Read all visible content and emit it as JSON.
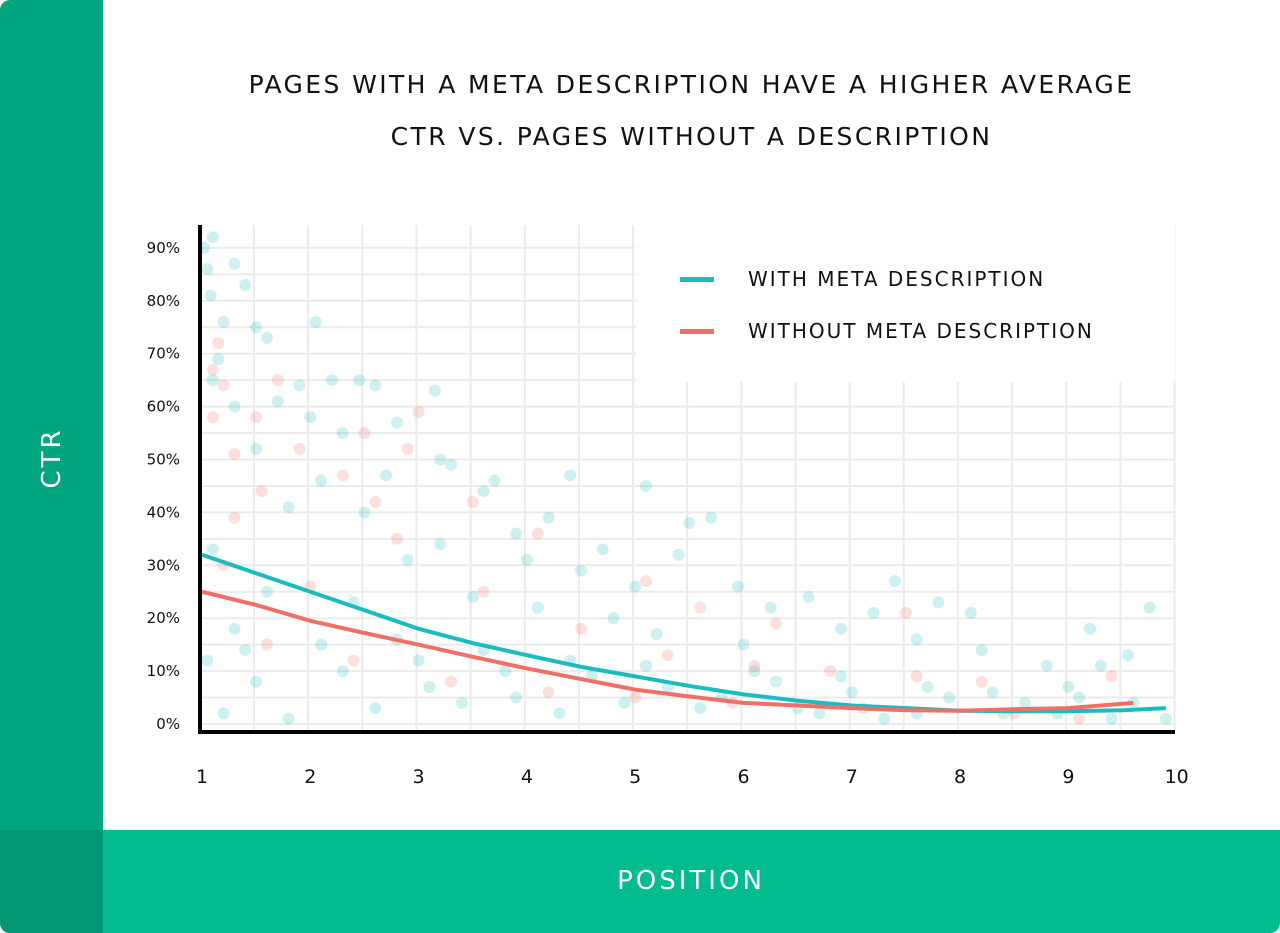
{
  "chart_data": {
    "type": "scatter",
    "title_lines": [
      "PAGES WITH A META DESCRIPTION HAVE A HIGHER AVERAGE",
      "CTR VS. PAGES WITHOUT A DESCRIPTION"
    ],
    "xlabel": "POSITION",
    "ylabel": "CTR",
    "xlim": [
      1,
      10
    ],
    "ylim": [
      0,
      90
    ],
    "x_ticks": [
      "1",
      "2",
      "3",
      "4",
      "5",
      "6",
      "7",
      "8",
      "9",
      "10"
    ],
    "y_ticks": [
      "0%",
      "10%",
      "20%",
      "30%",
      "40%",
      "50%",
      "60%",
      "70%",
      "80%",
      "90%"
    ],
    "grid": true,
    "legend_position": "top-right",
    "series": [
      {
        "name": "WITH META DESCRIPTION",
        "color": "#1bbcc0",
        "trend": [
          [
            1,
            32
          ],
          [
            1.5,
            28.5
          ],
          [
            2,
            25
          ],
          [
            2.5,
            21.5
          ],
          [
            3,
            18
          ],
          [
            3.5,
            15.3
          ],
          [
            4,
            13
          ],
          [
            4.5,
            10.8
          ],
          [
            5,
            9
          ],
          [
            5.5,
            7.2
          ],
          [
            6,
            5.6
          ],
          [
            6.5,
            4.4
          ],
          [
            7,
            3.5
          ],
          [
            7.5,
            3
          ],
          [
            8,
            2.5
          ],
          [
            8.5,
            2.4
          ],
          [
            9,
            2.4
          ],
          [
            9.5,
            2.6
          ],
          [
            9.9,
            3
          ]
        ],
        "points": [
          [
            1.02,
            90
          ],
          [
            1.1,
            92
          ],
          [
            1.05,
            86
          ],
          [
            1.3,
            87
          ],
          [
            1.4,
            83
          ],
          [
            1.08,
            81
          ],
          [
            1.2,
            76
          ],
          [
            1.5,
            75
          ],
          [
            1.6,
            73
          ],
          [
            2.05,
            76
          ],
          [
            1.15,
            69
          ],
          [
            1.1,
            65
          ],
          [
            1.9,
            64
          ],
          [
            2.2,
            65
          ],
          [
            2.45,
            65
          ],
          [
            2.6,
            64
          ],
          [
            3.15,
            63
          ],
          [
            1.7,
            61
          ],
          [
            1.3,
            60
          ],
          [
            2.0,
            58
          ],
          [
            2.8,
            57
          ],
          [
            2.3,
            55
          ],
          [
            1.5,
            52
          ],
          [
            3.2,
            50
          ],
          [
            3.3,
            49
          ],
          [
            2.1,
            46
          ],
          [
            2.7,
            47
          ],
          [
            3.7,
            46
          ],
          [
            4.4,
            47
          ],
          [
            4.2,
            39
          ],
          [
            3.6,
            44
          ],
          [
            2.5,
            40
          ],
          [
            1.8,
            41
          ],
          [
            5.1,
            45
          ],
          [
            5.7,
            39
          ],
          [
            5.5,
            38
          ],
          [
            4.7,
            33
          ],
          [
            3.9,
            36
          ],
          [
            3.2,
            34
          ],
          [
            1.1,
            33
          ],
          [
            2.9,
            31
          ],
          [
            4.0,
            31
          ],
          [
            4.5,
            29
          ],
          [
            5.0,
            26
          ],
          [
            5.4,
            32
          ],
          [
            5.95,
            26
          ],
          [
            6.6,
            24
          ],
          [
            6.25,
            22
          ],
          [
            7.4,
            27
          ],
          [
            7.2,
            21
          ],
          [
            7.8,
            23
          ],
          [
            8.1,
            21
          ],
          [
            9.75,
            22
          ],
          [
            9.2,
            18
          ],
          [
            6.9,
            18
          ],
          [
            7.6,
            16
          ],
          [
            8.2,
            14
          ],
          [
            8.8,
            11
          ],
          [
            9.3,
            11
          ],
          [
            9.55,
            13
          ],
          [
            6.0,
            15
          ],
          [
            5.2,
            17
          ],
          [
            4.8,
            20
          ],
          [
            4.1,
            22
          ],
          [
            3.5,
            24
          ],
          [
            2.4,
            23
          ],
          [
            1.6,
            25
          ],
          [
            1.3,
            18
          ],
          [
            2.1,
            15
          ],
          [
            3.0,
            12
          ],
          [
            3.8,
            10
          ],
          [
            4.6,
            9
          ],
          [
            5.3,
            7
          ],
          [
            6.3,
            8
          ],
          [
            7.0,
            6
          ],
          [
            7.9,
            5
          ],
          [
            8.6,
            4
          ],
          [
            9.1,
            5
          ],
          [
            9.9,
            1
          ],
          [
            1.2,
            2
          ],
          [
            1.8,
            1
          ],
          [
            2.6,
            3
          ],
          [
            3.4,
            4
          ],
          [
            4.3,
            2
          ],
          [
            5.6,
            3
          ],
          [
            6.7,
            2
          ],
          [
            7.3,
            1
          ],
          [
            8.4,
            2
          ],
          [
            9.4,
            1
          ],
          [
            1.5,
            8
          ],
          [
            2.3,
            10
          ],
          [
            3.1,
            7
          ],
          [
            3.9,
            5
          ],
          [
            4.9,
            4
          ],
          [
            5.8,
            5
          ],
          [
            6.5,
            3
          ],
          [
            7.6,
            2
          ],
          [
            8.9,
            2
          ],
          [
            1.05,
            12
          ],
          [
            1.4,
            14
          ],
          [
            2.8,
            16
          ],
          [
            3.6,
            14
          ],
          [
            4.4,
            12
          ],
          [
            5.1,
            11
          ],
          [
            6.1,
            10
          ],
          [
            6.9,
            9
          ],
          [
            7.7,
            7
          ],
          [
            8.3,
            6
          ],
          [
            9.0,
            7
          ],
          [
            9.6,
            4
          ]
        ]
      },
      {
        "name": "WITHOUT META DESCRIPTION",
        "color": "#f07068",
        "trend": [
          [
            1,
            25
          ],
          [
            1.5,
            22.5
          ],
          [
            2,
            19.5
          ],
          [
            2.5,
            17.2
          ],
          [
            3,
            15
          ],
          [
            3.5,
            12.7
          ],
          [
            4,
            10.5
          ],
          [
            4.5,
            8.5
          ],
          [
            5,
            6.5
          ],
          [
            5.5,
            5.2
          ],
          [
            6,
            4
          ],
          [
            6.5,
            3.5
          ],
          [
            7,
            3
          ],
          [
            7.5,
            2.6
          ],
          [
            8,
            2.5
          ],
          [
            8.5,
            2.8
          ],
          [
            9,
            3
          ],
          [
            9.3,
            3.5
          ],
          [
            9.6,
            4
          ]
        ],
        "points": [
          [
            1.15,
            72
          ],
          [
            1.1,
            67
          ],
          [
            1.2,
            64
          ],
          [
            1.1,
            58
          ],
          [
            1.5,
            58
          ],
          [
            1.7,
            65
          ],
          [
            3.0,
            59
          ],
          [
            2.5,
            55
          ],
          [
            1.9,
            52
          ],
          [
            1.3,
            51
          ],
          [
            2.9,
            52
          ],
          [
            1.55,
            44
          ],
          [
            2.3,
            47
          ],
          [
            2.6,
            42
          ],
          [
            3.5,
            42
          ],
          [
            1.3,
            39
          ],
          [
            2.8,
            35
          ],
          [
            4.1,
            36
          ],
          [
            5.1,
            27
          ],
          [
            5.6,
            22
          ],
          [
            6.3,
            19
          ],
          [
            7.5,
            21
          ],
          [
            1.2,
            30
          ],
          [
            2.0,
            26
          ],
          [
            3.6,
            25
          ],
          [
            4.5,
            18
          ],
          [
            5.3,
            13
          ],
          [
            6.1,
            11
          ],
          [
            6.8,
            10
          ],
          [
            7.6,
            9
          ],
          [
            8.2,
            8
          ],
          [
            9.4,
            9
          ],
          [
            1.6,
            15
          ],
          [
            2.4,
            12
          ],
          [
            3.3,
            8
          ],
          [
            4.2,
            6
          ],
          [
            5.0,
            5
          ],
          [
            5.9,
            4
          ],
          [
            7.1,
            3
          ],
          [
            8.5,
            2
          ],
          [
            9.1,
            1
          ]
        ]
      }
    ]
  }
}
